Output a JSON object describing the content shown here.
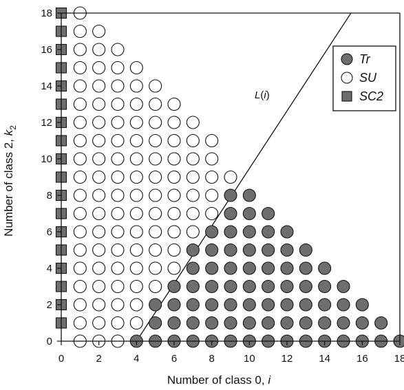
{
  "chart_data": {
    "type": "scatter",
    "xlabel": "Number of class 0, ",
    "xlabel_var": "i",
    "ylabel": "Number of class 2, ",
    "ylabel_var": "k",
    "ylabel_sub": "2",
    "xlim": [
      0,
      18
    ],
    "ylim": [
      0,
      18
    ],
    "xticks": [
      0,
      2,
      4,
      6,
      8,
      10,
      12,
      14,
      16,
      18
    ],
    "yticks": [
      0,
      2,
      4,
      6,
      8,
      10,
      12,
      14,
      16,
      18
    ],
    "grid": false,
    "legend_position": "top-right",
    "series": [
      {
        "name": "Tr",
        "marker": "filled-circle",
        "color": "#6e6e6e",
        "points": [
          [
            4,
            0
          ],
          [
            5,
            0
          ],
          [
            6,
            0
          ],
          [
            7,
            0
          ],
          [
            8,
            0
          ],
          [
            9,
            0
          ],
          [
            10,
            0
          ],
          [
            11,
            0
          ],
          [
            12,
            0
          ],
          [
            13,
            0
          ],
          [
            14,
            0
          ],
          [
            15,
            0
          ],
          [
            16,
            0
          ],
          [
            17,
            0
          ],
          [
            18,
            0
          ],
          [
            5,
            1
          ],
          [
            6,
            1
          ],
          [
            7,
            1
          ],
          [
            8,
            1
          ],
          [
            9,
            1
          ],
          [
            10,
            1
          ],
          [
            11,
            1
          ],
          [
            12,
            1
          ],
          [
            13,
            1
          ],
          [
            14,
            1
          ],
          [
            15,
            1
          ],
          [
            16,
            1
          ],
          [
            17,
            1
          ],
          [
            5,
            2
          ],
          [
            6,
            2
          ],
          [
            7,
            2
          ],
          [
            8,
            2
          ],
          [
            9,
            2
          ],
          [
            10,
            2
          ],
          [
            11,
            2
          ],
          [
            12,
            2
          ],
          [
            13,
            2
          ],
          [
            14,
            2
          ],
          [
            15,
            2
          ],
          [
            16,
            2
          ],
          [
            6,
            3
          ],
          [
            7,
            3
          ],
          [
            8,
            3
          ],
          [
            9,
            3
          ],
          [
            10,
            3
          ],
          [
            11,
            3
          ],
          [
            12,
            3
          ],
          [
            13,
            3
          ],
          [
            14,
            3
          ],
          [
            15,
            3
          ],
          [
            7,
            4
          ],
          [
            8,
            4
          ],
          [
            9,
            4
          ],
          [
            10,
            4
          ],
          [
            11,
            4
          ],
          [
            12,
            4
          ],
          [
            13,
            4
          ],
          [
            14,
            4
          ],
          [
            7,
            5
          ],
          [
            8,
            5
          ],
          [
            9,
            5
          ],
          [
            10,
            5
          ],
          [
            11,
            5
          ],
          [
            12,
            5
          ],
          [
            13,
            5
          ],
          [
            8,
            6
          ],
          [
            9,
            6
          ],
          [
            10,
            6
          ],
          [
            11,
            6
          ],
          [
            12,
            6
          ],
          [
            9,
            7
          ],
          [
            10,
            7
          ],
          [
            11,
            7
          ],
          [
            9,
            8
          ],
          [
            10,
            8
          ]
        ]
      },
      {
        "name": "SU",
        "marker": "open-circle",
        "color": "#ffffff",
        "points": [
          [
            1,
            0
          ],
          [
            2,
            0
          ],
          [
            3,
            0
          ],
          [
            1,
            1
          ],
          [
            2,
            1
          ],
          [
            3,
            1
          ],
          [
            4,
            1
          ],
          [
            1,
            2
          ],
          [
            2,
            2
          ],
          [
            3,
            2
          ],
          [
            4,
            2
          ],
          [
            1,
            3
          ],
          [
            2,
            3
          ],
          [
            3,
            3
          ],
          [
            4,
            3
          ],
          [
            5,
            3
          ],
          [
            1,
            4
          ],
          [
            2,
            4
          ],
          [
            3,
            4
          ],
          [
            4,
            4
          ],
          [
            5,
            4
          ],
          [
            6,
            4
          ],
          [
            1,
            5
          ],
          [
            2,
            5
          ],
          [
            3,
            5
          ],
          [
            4,
            5
          ],
          [
            5,
            5
          ],
          [
            6,
            5
          ],
          [
            1,
            6
          ],
          [
            2,
            6
          ],
          [
            3,
            6
          ],
          [
            4,
            6
          ],
          [
            5,
            6
          ],
          [
            6,
            6
          ],
          [
            7,
            6
          ],
          [
            1,
            7
          ],
          [
            2,
            7
          ],
          [
            3,
            7
          ],
          [
            4,
            7
          ],
          [
            5,
            7
          ],
          [
            6,
            7
          ],
          [
            7,
            7
          ],
          [
            8,
            7
          ],
          [
            1,
            8
          ],
          [
            2,
            8
          ],
          [
            3,
            8
          ],
          [
            4,
            8
          ],
          [
            5,
            8
          ],
          [
            6,
            8
          ],
          [
            7,
            8
          ],
          [
            8,
            8
          ],
          [
            1,
            9
          ],
          [
            2,
            9
          ],
          [
            3,
            9
          ],
          [
            4,
            9
          ],
          [
            5,
            9
          ],
          [
            6,
            9
          ],
          [
            7,
            9
          ],
          [
            8,
            9
          ],
          [
            9,
            9
          ],
          [
            1,
            10
          ],
          [
            2,
            10
          ],
          [
            3,
            10
          ],
          [
            4,
            10
          ],
          [
            5,
            10
          ],
          [
            6,
            10
          ],
          [
            7,
            10
          ],
          [
            8,
            10
          ],
          [
            1,
            11
          ],
          [
            2,
            11
          ],
          [
            3,
            11
          ],
          [
            4,
            11
          ],
          [
            5,
            11
          ],
          [
            6,
            11
          ],
          [
            7,
            11
          ],
          [
            8,
            11
          ],
          [
            1,
            12
          ],
          [
            2,
            12
          ],
          [
            3,
            12
          ],
          [
            4,
            12
          ],
          [
            5,
            12
          ],
          [
            6,
            12
          ],
          [
            7,
            12
          ],
          [
            1,
            13
          ],
          [
            2,
            13
          ],
          [
            3,
            13
          ],
          [
            4,
            13
          ],
          [
            5,
            13
          ],
          [
            6,
            13
          ],
          [
            1,
            14
          ],
          [
            2,
            14
          ],
          [
            3,
            14
          ],
          [
            4,
            14
          ],
          [
            5,
            14
          ],
          [
            1,
            15
          ],
          [
            2,
            15
          ],
          [
            3,
            15
          ],
          [
            4,
            15
          ],
          [
            1,
            16
          ],
          [
            2,
            16
          ],
          [
            3,
            16
          ],
          [
            1,
            17
          ],
          [
            2,
            17
          ],
          [
            1,
            18
          ]
        ]
      },
      {
        "name": "SC2",
        "marker": "filled-square",
        "color": "#6e6e6e",
        "points": [
          [
            0,
            1
          ],
          [
            0,
            2
          ],
          [
            0,
            3
          ],
          [
            0,
            4
          ],
          [
            0,
            5
          ],
          [
            0,
            6
          ],
          [
            0,
            7
          ],
          [
            0,
            8
          ],
          [
            0,
            9
          ],
          [
            0,
            10
          ],
          [
            0,
            11
          ],
          [
            0,
            12
          ],
          [
            0,
            13
          ],
          [
            0,
            14
          ],
          [
            0,
            15
          ],
          [
            0,
            16
          ],
          [
            0,
            17
          ],
          [
            0,
            18
          ]
        ]
      }
    ],
    "line": {
      "label": "L",
      "label_var": "i",
      "points": [
        [
          4,
          0
        ],
        [
          15.4,
          18
        ]
      ]
    }
  }
}
